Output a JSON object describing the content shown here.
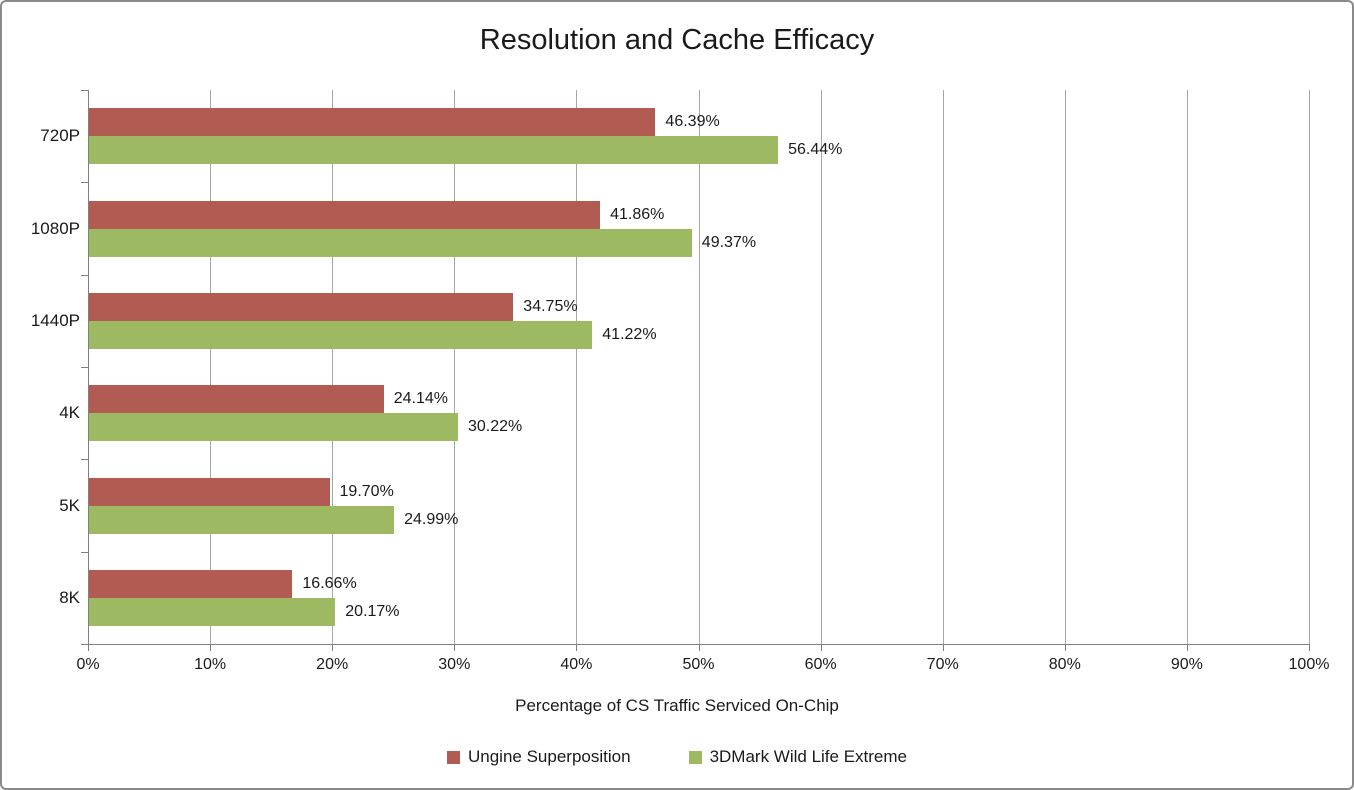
{
  "chart_data": {
    "type": "bar",
    "orientation": "horizontal",
    "title": "Resolution and Cache Efficacy",
    "xlabel": "Percentage of CS Traffic Serviced On-Chip",
    "ylabel": "",
    "categories": [
      "720P",
      "1080P",
      "1440P",
      "4K",
      "5K",
      "8K"
    ],
    "series": [
      {
        "name": "Ungine Superposition",
        "color": "#b25b53",
        "values": [
          46.39,
          41.86,
          34.75,
          24.14,
          19.7,
          16.66
        ]
      },
      {
        "name": "3DMark Wild Life Extreme",
        "color": "#9dba62",
        "values": [
          56.44,
          49.37,
          41.22,
          30.22,
          24.99,
          20.17
        ]
      }
    ],
    "data_labels": [
      [
        "46.39%",
        "41.86%",
        "34.75%",
        "24.14%",
        "19.70%",
        "16.66%"
      ],
      [
        "56.44%",
        "49.37%",
        "41.22%",
        "30.22%",
        "24.99%",
        "20.17%"
      ]
    ],
    "xlim": [
      0,
      100
    ],
    "x_ticks": [
      "0%",
      "10%",
      "20%",
      "30%",
      "40%",
      "50%",
      "60%",
      "70%",
      "80%",
      "90%",
      "100%"
    ],
    "grid": true,
    "legend_position": "bottom",
    "colors": {
      "gridline": "#a6a6a6",
      "axis": "#808080",
      "text": "#1a1a1a",
      "frame_border": "#8a8a8a",
      "background": "#ffffff"
    }
  }
}
